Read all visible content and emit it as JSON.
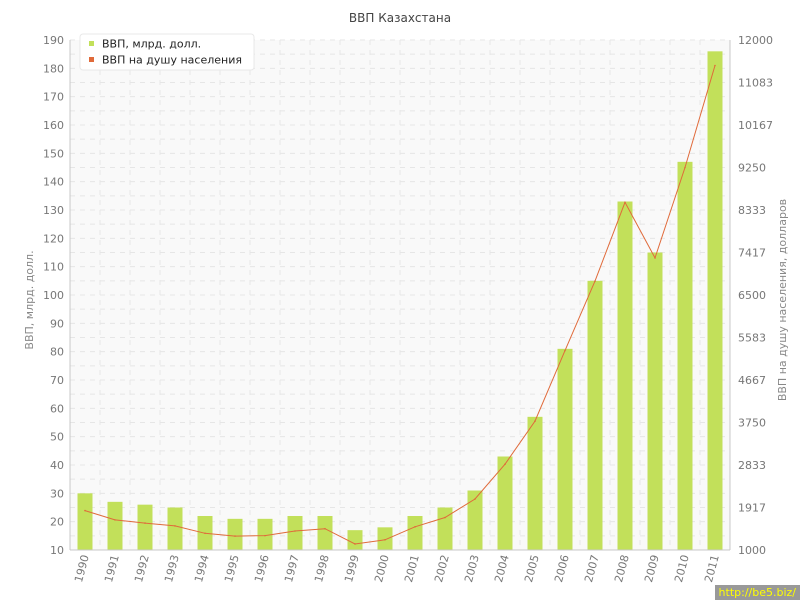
{
  "chart_data": {
    "type": "bar",
    "title": "ВВП Казахстана",
    "ylabel_left": "ВВП, млрд. долл.",
    "ylabel_right": "ВВП на душу населения, долларов",
    "categories": [
      "1990",
      "1991",
      "1992",
      "1993",
      "1994",
      "1995",
      "1996",
      "1997",
      "1998",
      "1999",
      "2000",
      "2001",
      "2002",
      "2003",
      "2004",
      "2005",
      "2006",
      "2007",
      "2008",
      "2009",
      "2010",
      "2011"
    ],
    "y_left_ticks": [
      "10",
      "20",
      "30",
      "40",
      "50",
      "60",
      "70",
      "80",
      "90",
      "100",
      "110",
      "120",
      "130",
      "140",
      "150",
      "160",
      "170",
      "180",
      "190"
    ],
    "y_right_ticks": [
      "1000",
      "1917",
      "2833",
      "3750",
      "4667",
      "5583",
      "6500",
      "7417",
      "8333",
      "9250",
      "10167",
      "11083",
      "12000"
    ],
    "ylim_left": [
      10,
      190
    ],
    "ylim_right": [
      1000,
      12000
    ],
    "grid": true,
    "legend_position": "top-left",
    "series": [
      {
        "name": "ВВП, млрд. долл.",
        "type": "bar",
        "axis": "left",
        "color": "#c2e05a",
        "values": [
          30,
          27,
          26,
          25,
          22,
          21,
          21,
          22,
          22,
          17,
          18,
          22,
          25,
          31,
          43,
          57,
          81,
          105,
          133,
          115,
          147,
          186
        ]
      },
      {
        "name": "ВВП на душу населения",
        "type": "line",
        "axis": "right",
        "color": "#e06a3a",
        "values": [
          1850,
          1650,
          1580,
          1520,
          1360,
          1300,
          1310,
          1410,
          1460,
          1130,
          1220,
          1500,
          1700,
          2100,
          2850,
          3780,
          5300,
          6800,
          8500,
          7300,
          9250,
          11450
        ]
      }
    ]
  },
  "watermark": "http://be5.biz/"
}
